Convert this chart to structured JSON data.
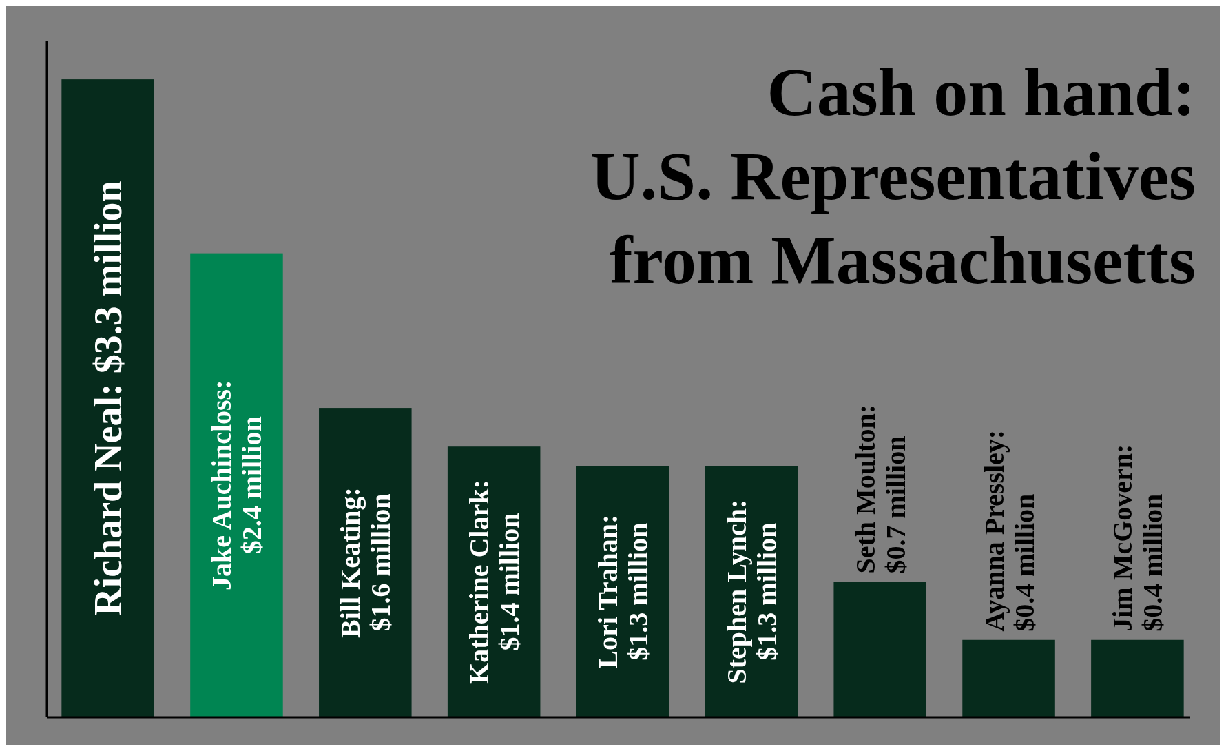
{
  "chart_data": {
    "type": "bar",
    "title": "Cash on hand:\nU.S. Representatives\nfrom Massachusetts",
    "categories": [
      null,
      null,
      null,
      null,
      null,
      null,
      null,
      null,
      null
    ],
    "values": [
      3.3,
      2.4,
      1.6,
      1.4,
      1.3,
      1.3,
      0.7,
      0.4,
      0.4
    ],
    "colors": [
      "#062b1c",
      "#008552",
      "#062b1c",
      "#062b1c",
      "#062b1c",
      "#062b1c",
      "#062b1c",
      "#062b1c",
      "#062b1c"
    ],
    "value_labels": [
      "Richard Neal: $3.3 million",
      "Jake Auchincloss:\n$2.4 million",
      "Bill Keating:\n$1.6 million",
      "Katherine Clark:\n$1.4 million",
      "Lori Trahan:\n$1.3 million",
      "Stephen Lynch:\n$1.3 million",
      "Seth Moulton:\n$0.7 million",
      "Ayanna Pressley:\n$0.4 million",
      "Jim McGovern:\n$0.4 million"
    ],
    "ylim": [
      0,
      3.5
    ]
  }
}
